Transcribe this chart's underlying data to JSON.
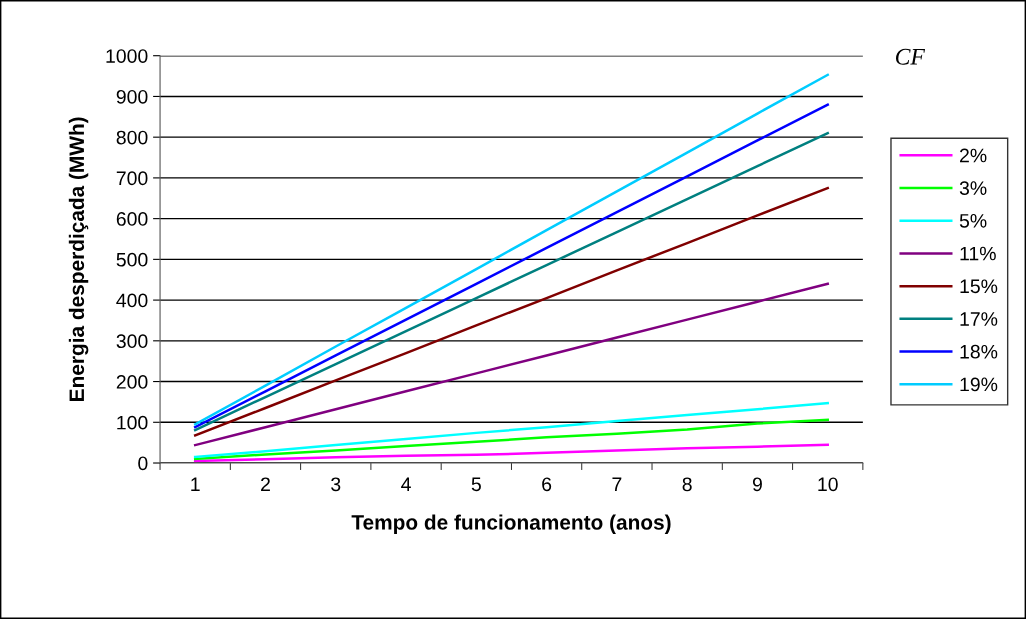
{
  "chart_data": {
    "type": "line",
    "xlabel": "Tempo de funcionamento (anos)",
    "ylabel": "Energia desperdiçada (MWh)",
    "legend_title": "CF",
    "categories": [
      "1",
      "2",
      "3",
      "4",
      "5",
      "6",
      "7",
      "8",
      "9",
      "10"
    ],
    "ylim": [
      0,
      1000
    ],
    "yticks": [
      0,
      100,
      200,
      300,
      400,
      500,
      600,
      700,
      800,
      900,
      1000
    ],
    "grid": "y",
    "legend": "right",
    "marker": "none",
    "line_style": "solid",
    "series": [
      {
        "name": "2%",
        "color": "#ff00ff",
        "values": [
          5,
          9,
          14,
          18,
          20,
          25,
          31,
          36,
          40,
          45
        ]
      },
      {
        "name": "3%",
        "color": "#00ff00",
        "values": [
          10,
          21,
          31,
          42,
          52,
          63,
          72,
          82,
          97,
          106
        ]
      },
      {
        "name": "5%",
        "color": "#00ffff",
        "values": [
          15,
          29,
          44,
          59,
          74,
          88,
          103,
          118,
          132,
          147
        ]
      },
      {
        "name": "11%",
        "color": "#800080",
        "values": [
          44,
          88,
          132,
          176,
          220,
          264,
          308,
          352,
          396,
          440
        ]
      },
      {
        "name": "15%",
        "color": "#800000",
        "values": [
          68,
          135,
          203,
          270,
          338,
          405,
          473,
          540,
          608,
          675
        ]
      },
      {
        "name": "17%",
        "color": "#008080",
        "values": [
          81,
          162,
          243,
          324,
          405,
          486,
          567,
          648,
          729,
          810
        ]
      },
      {
        "name": "18%",
        "color": "#0000ff",
        "values": [
          88,
          176,
          264,
          352,
          440,
          528,
          616,
          704,
          792,
          880
        ]
      },
      {
        "name": "19%",
        "color": "#00ccff",
        "values": [
          95,
          190,
          286,
          381,
          476,
          572,
          667,
          762,
          858,
          953
        ]
      }
    ]
  }
}
